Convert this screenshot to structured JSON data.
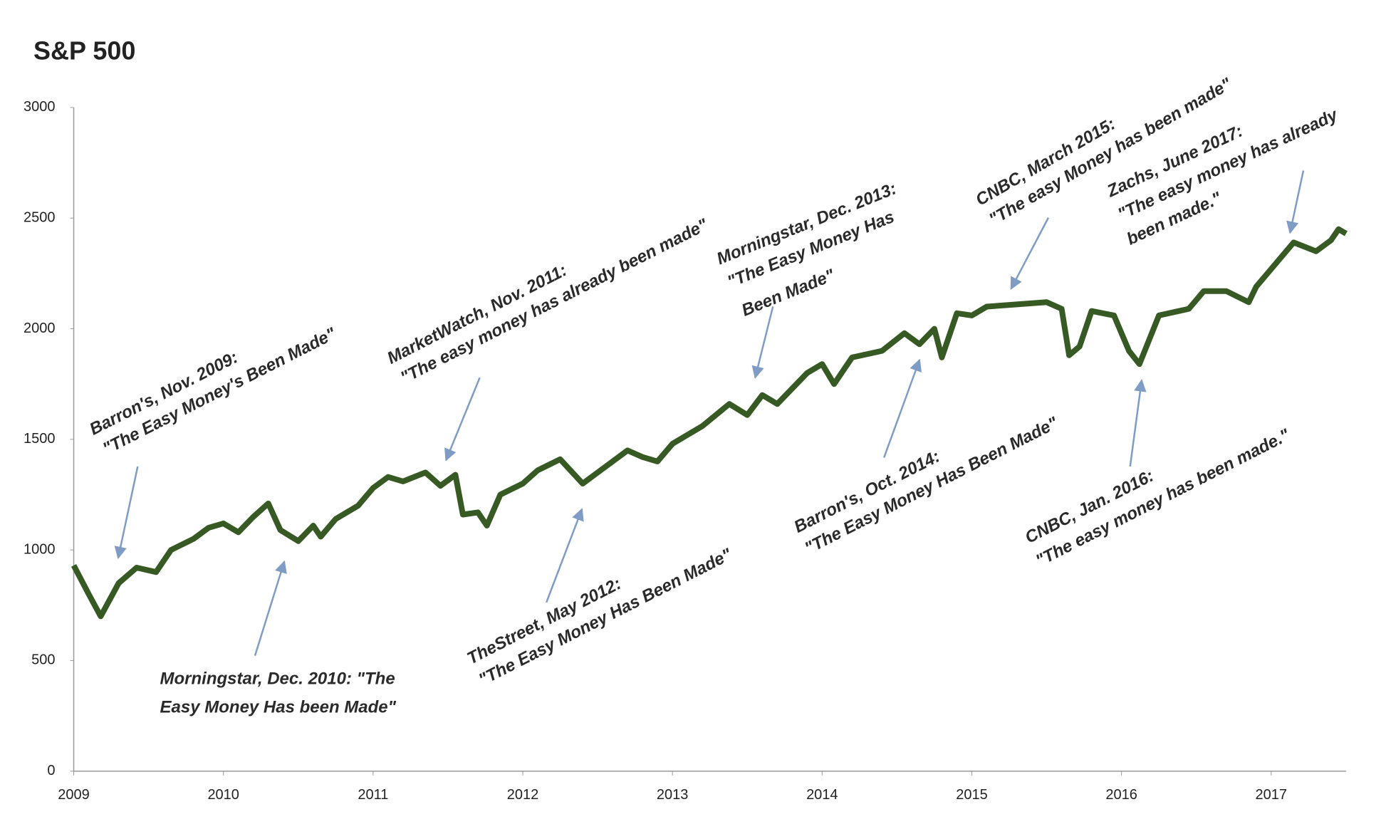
{
  "chart_data": {
    "type": "line",
    "title": "S&P 500",
    "x": [
      2009.0,
      2009.1,
      2009.18,
      2009.3,
      2009.42,
      2009.55,
      2009.65,
      2009.8,
      2009.9,
      2010.0,
      2010.1,
      2010.2,
      2010.3,
      2010.38,
      2010.5,
      2010.6,
      2010.65,
      2010.75,
      2010.9,
      2011.0,
      2011.1,
      2011.2,
      2011.35,
      2011.45,
      2011.55,
      2011.6,
      2011.7,
      2011.76,
      2011.85,
      2012.0,
      2012.1,
      2012.25,
      2012.4,
      2012.5,
      2012.7,
      2012.8,
      2012.9,
      2013.0,
      2013.2,
      2013.38,
      2013.5,
      2013.6,
      2013.7,
      2013.9,
      2014.0,
      2014.08,
      2014.2,
      2014.4,
      2014.55,
      2014.65,
      2014.75,
      2014.8,
      2014.9,
      2015.0,
      2015.1,
      2015.3,
      2015.5,
      2015.6,
      2015.65,
      2015.72,
      2015.8,
      2015.95,
      2016.05,
      2016.12,
      2016.25,
      2016.45,
      2016.55,
      2016.7,
      2016.85,
      2016.9,
      2017.0,
      2017.15,
      2017.3,
      2017.4,
      2017.45,
      2017.5
    ],
    "series": [
      {
        "name": "S&P 500",
        "color": "#375a24",
        "values": [
          930,
          800,
          700,
          850,
          920,
          900,
          1000,
          1050,
          1100,
          1120,
          1080,
          1150,
          1210,
          1090,
          1040,
          1110,
          1060,
          1140,
          1200,
          1280,
          1330,
          1310,
          1350,
          1290,
          1340,
          1160,
          1170,
          1110,
          1250,
          1300,
          1360,
          1410,
          1300,
          1350,
          1450,
          1420,
          1400,
          1480,
          1560,
          1660,
          1610,
          1700,
          1660,
          1800,
          1840,
          1750,
          1870,
          1900,
          1980,
          1930,
          2000,
          1870,
          2070,
          2060,
          2100,
          2110,
          2120,
          2090,
          1880,
          1920,
          2080,
          2060,
          1900,
          1840,
          2060,
          2090,
          2170,
          2170,
          2120,
          2190,
          2270,
          2390,
          2350,
          2400,
          2450,
          2430
        ]
      }
    ],
    "xlim": [
      2009,
      2017.5
    ],
    "xticks": [
      2009,
      2010,
      2011,
      2012,
      2013,
      2014,
      2015,
      2016,
      2017
    ],
    "ylim": [
      0,
      3000
    ],
    "yticks": [
      0,
      500,
      1000,
      1500,
      2000,
      2500,
      3000
    ],
    "grid": false,
    "annotations": [
      [
        "Barron's, Nov. 2009:",
        "\"The Easy Money's Been Made\""
      ],
      [
        "Morningstar, Dec. 2010: \"The",
        "Easy Money Has been Made\""
      ],
      [
        "MarketWatch, Nov. 2011:",
        "\"The easy money has already been made\""
      ],
      [
        "TheStreet, May 2012:",
        "\"The Easy Money Has Been Made\""
      ],
      [
        "Morningstar, Dec. 2013:",
        "\"The Easy Money Has",
        "Been Made\""
      ],
      [
        "Barron's, Oct. 2014:",
        "\"The Easy Money Has Been Made\""
      ],
      [
        "CNBC, March 2015:",
        "\"The easy Money has been made\""
      ],
      [
        "CNBC, Jan. 2016:",
        "\"The easy money has been made.\""
      ],
      [
        "Zachs, June 2017:",
        "\"The easy money has already",
        "been made.\""
      ]
    ]
  }
}
